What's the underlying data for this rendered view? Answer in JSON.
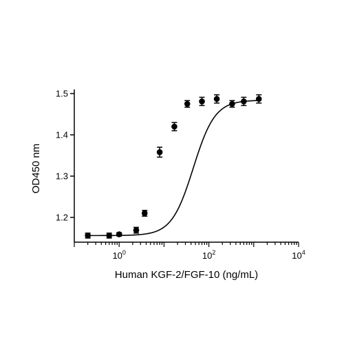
{
  "chart_data": {
    "type": "scatter",
    "title": "",
    "xlabel": "Human KGF-2/FGF-10 (ng/mL)",
    "ylabel": "OD450 nm",
    "x_scale": "log10",
    "xlim": [
      0.1,
      10000
    ],
    "ylim": [
      1.14,
      1.51
    ],
    "x_tick_labels": [
      {
        "value": 1,
        "base": "10",
        "exp": "0"
      },
      {
        "value": 100,
        "base": "10",
        "exp": "2"
      },
      {
        "value": 10000,
        "base": "10",
        "exp": "4"
      }
    ],
    "y_ticks": [
      1.2,
      1.3,
      1.4,
      1.5
    ],
    "y_tick_labels": [
      "1.2",
      "1.3",
      "1.4",
      "1.5"
    ],
    "grid": false,
    "legend": "none",
    "marker_color": "#000000",
    "series": [
      {
        "x": [
          0.2,
          0.6,
          1,
          2.4,
          3.7,
          8,
          17,
          33,
          70,
          150,
          330,
          600,
          1300
        ],
        "y": [
          1.156,
          1.156,
          1.159,
          1.169,
          1.21,
          1.358,
          1.42,
          1.475,
          1.481,
          1.487,
          1.475,
          1.481,
          1.487
        ],
        "err": [
          0.006,
          0.006,
          0.004,
          0.007,
          0.007,
          0.012,
          0.01,
          0.008,
          0.01,
          0.01,
          0.008,
          0.01,
          0.01
        ]
      }
    ],
    "fit_curve": {
      "bottom": 1.156,
      "top": 1.484,
      "ec50": 45,
      "hill": 1.8
    }
  }
}
